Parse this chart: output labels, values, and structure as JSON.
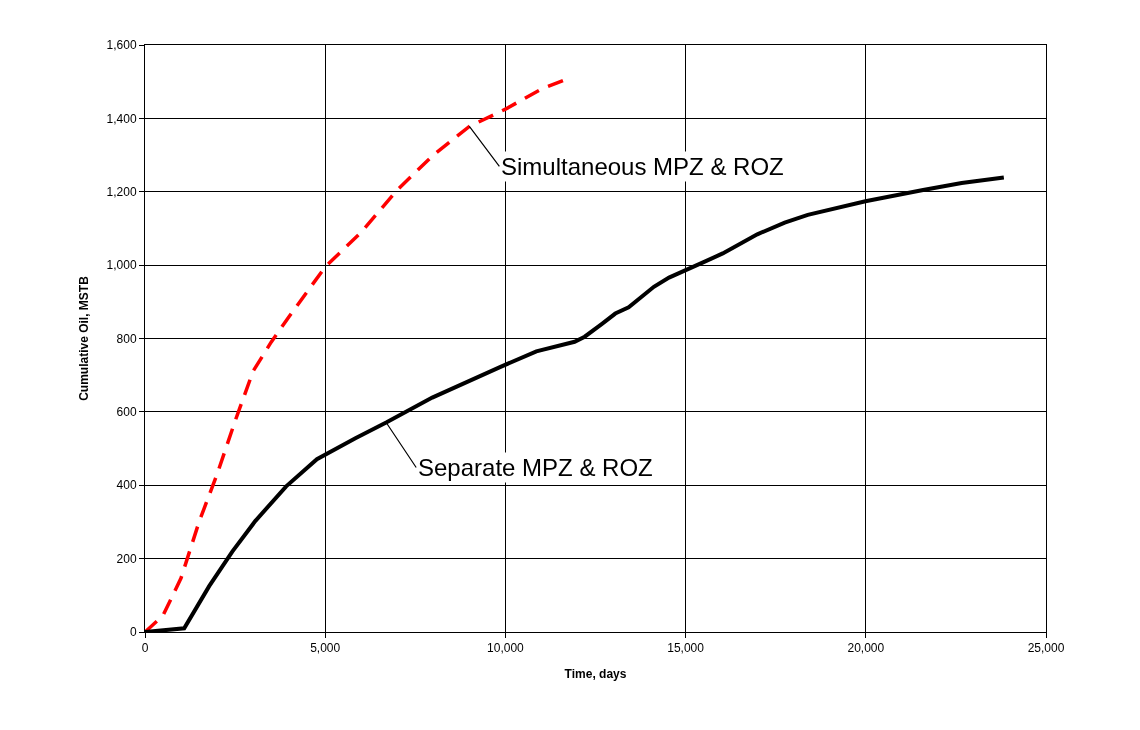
{
  "chart_data": {
    "type": "line",
    "xlabel": "Time, days",
    "ylabel": "Cumulative Oil, MSTB",
    "series": [
      {
        "color": "#ff0000",
        "line_style": "dashed",
        "x": [
          0,
          500,
          1000,
          1500,
          2000,
          2500,
          3000,
          3500,
          4000,
          5000,
          6000,
          7000,
          8000,
          9000,
          10000,
          11000,
          11600
        ],
        "values": [
          0,
          45,
          147,
          300,
          430,
          575,
          711,
          790,
          860,
          995,
          1090,
          1205,
          1300,
          1378,
          1425,
          1480,
          1503
        ]
      },
      {
        "color": "#000000",
        "line_style": "solid",
        "x": [
          0,
          1088,
          1781,
          2422,
          3064,
          3917,
          4770,
          5838,
          6692,
          7971,
          9850,
          10860,
          11920,
          12200,
          12680,
          13050,
          13420,
          14120,
          14540,
          15500,
          16030,
          16990,
          17750,
          18390,
          19990,
          21590,
          22660,
          23830
        ],
        "values": [
          0,
          10,
          125,
          219,
          303,
          397,
          471,
          528,
          571,
          639,
          722,
          765,
          791,
          805,
          840,
          868,
          885,
          941,
          966,
          1008,
          1032,
          1084,
          1116,
          1137,
          1174,
          1205,
          1224,
          1239
        ]
      }
    ],
    "annotations": [
      {
        "text": "Simultaneous MPZ & ROZ",
        "x": 9000,
        "y": 1378
      },
      {
        "text": "Separate MPZ & ROZ",
        "x": 6692,
        "y": 571
      }
    ],
    "xlim": [
      0,
      25000
    ],
    "ylim": [
      0,
      1600
    ],
    "xticks": [
      0,
      {
        "value": 5000,
        "label": "5,000"
      },
      {
        "value": 10000,
        "label": "10,000"
      },
      {
        "value": 15000,
        "label": "15,000"
      },
      {
        "value": 20000,
        "label": "20,000"
      },
      {
        "value": 25000,
        "label": "25,000"
      }
    ],
    "yticks": [
      0,
      200,
      400,
      600,
      800,
      {
        "value": 1000,
        "label": "1,000"
      },
      {
        "value": 1200,
        "label": "1,200"
      },
      {
        "value": 1400,
        "label": "1,400"
      },
      {
        "value": 1600,
        "label": "1,600"
      }
    ],
    "grid": true
  }
}
